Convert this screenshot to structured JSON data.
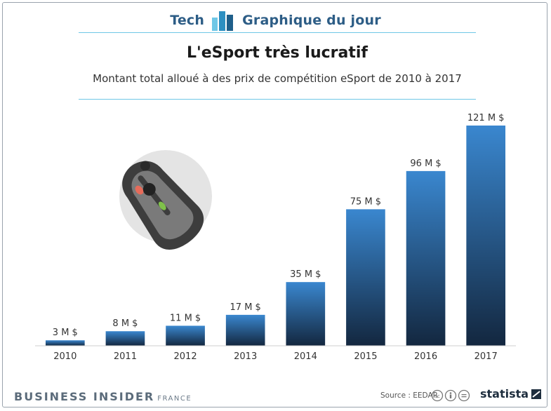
{
  "header": {
    "left": "Tech",
    "right": "Graphique du jour"
  },
  "chart_data": {
    "type": "bar",
    "title": "L'eSport très lucratif",
    "subtitle": "Montant total alloué à des prix de compétition eSport de 2010 à 2017",
    "categories": [
      "2010",
      "2011",
      "2012",
      "2013",
      "2014",
      "2015",
      "2016",
      "2017"
    ],
    "values": [
      3,
      8,
      11,
      17,
      35,
      75,
      96,
      121
    ],
    "data_labels": [
      "3 M $",
      "8 M $",
      "11 M $",
      "17 M $",
      "35 M $",
      "75 M $",
      "96 M $",
      "121 M $"
    ],
    "xlabel": "",
    "ylabel": "",
    "ylim": [
      0,
      121
    ],
    "grid": false,
    "colors": {
      "bar_top": "#3a87cf",
      "bar_bottom": "#13273f"
    }
  },
  "illustration": {
    "icon": "gaming-mouse-icon"
  },
  "footer": {
    "brand": "BUSINESS INSIDER",
    "edition": "FRANCE",
    "source": "Source : EEDAR",
    "license_icon": "creative-commons-icon",
    "publisher": "statista"
  }
}
